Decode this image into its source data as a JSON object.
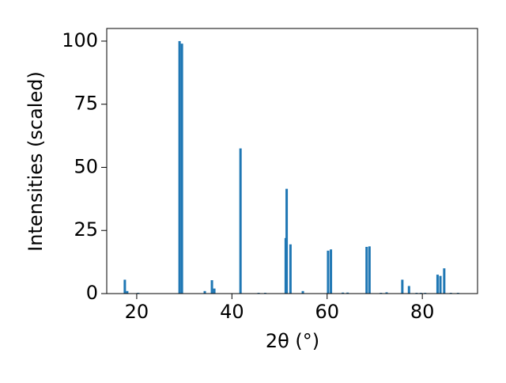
{
  "chart_data": {
    "type": "bar",
    "x_label": "2θ (°)",
    "y_label": "Intensities (scaled)",
    "x": [
      17.5,
      18.0,
      20.3,
      29.0,
      29.5,
      34.3,
      35.8,
      36.3,
      41.8,
      45.6,
      47.0,
      51.3,
      51.5,
      52.3,
      54.9,
      60.2,
      60.8,
      63.3,
      64.3,
      68.3,
      68.9,
      71.3,
      72.5,
      75.8,
      77.2,
      78.8,
      79.7,
      80.6,
      83.2,
      83.8,
      84.6,
      86.0,
      87.5
    ],
    "values": [
      5.5,
      1,
      0.3,
      100,
      99,
      1,
      5.3,
      2,
      57.5,
      0.3,
      0.3,
      22,
      41.5,
      19.5,
      1,
      17,
      17.5,
      0.4,
      0.4,
      18.5,
      18.7,
      0.3,
      0.5,
      5.5,
      3,
      0.3,
      0.3,
      0.3,
      7.5,
      7,
      10,
      0.3,
      0.3
    ],
    "color": "#1f77b4",
    "xlim": [
      13.7,
      91.6
    ],
    "xticks": [
      20,
      40,
      60,
      80
    ],
    "ylim": [
      0,
      105
    ],
    "yticks": [
      0,
      25,
      50,
      75,
      100
    ]
  }
}
